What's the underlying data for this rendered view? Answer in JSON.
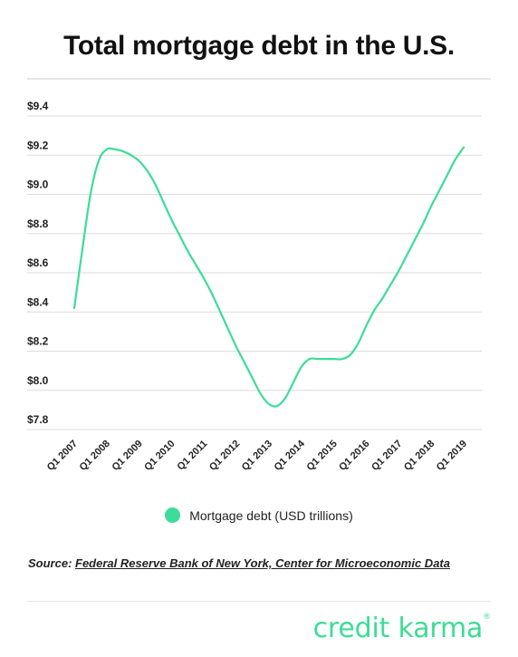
{
  "header": {
    "title": "Total mortgage debt in the U.S."
  },
  "chart_data": {
    "type": "line",
    "title": "Total mortgage debt in the U.S.",
    "xlabel": "",
    "ylabel": "",
    "categories": [
      "Q1 2007",
      "Q1 2008",
      "Q1 2009",
      "Q1 2010",
      "Q1 2011",
      "Q1 2012",
      "Q1 2013",
      "Q1 2014",
      "Q1 2015",
      "Q1 2016",
      "Q1 2017",
      "Q1 2018",
      "Q1 2019"
    ],
    "series": [
      {
        "name": "Mortgage debt (USD trillions)",
        "x": [
          2007.0,
          2007.25,
          2007.5,
          2007.75,
          2008.0,
          2008.25,
          2008.5,
          2008.75,
          2009.0,
          2009.25,
          2009.5,
          2009.75,
          2010.0,
          2010.25,
          2010.5,
          2010.75,
          2011.0,
          2011.25,
          2011.5,
          2011.75,
          2012.0,
          2012.25,
          2012.5,
          2012.75,
          2013.0,
          2013.25,
          2013.5,
          2013.75,
          2014.0,
          2014.25,
          2014.5,
          2014.75,
          2015.0,
          2015.25,
          2015.5,
          2015.75,
          2016.0,
          2016.25,
          2016.5,
          2016.75,
          2017.0,
          2017.25,
          2017.5,
          2017.75,
          2018.0,
          2018.25,
          2018.5,
          2018.75,
          2019.0
        ],
        "values": [
          8.42,
          8.72,
          9.0,
          9.17,
          9.23,
          9.23,
          9.22,
          9.2,
          9.17,
          9.12,
          9.05,
          8.96,
          8.87,
          8.79,
          8.71,
          8.64,
          8.57,
          8.49,
          8.4,
          8.31,
          8.22,
          8.14,
          8.06,
          7.98,
          7.93,
          7.92,
          7.96,
          8.04,
          8.12,
          8.16,
          8.16,
          8.16,
          8.16,
          8.16,
          8.18,
          8.24,
          8.33,
          8.41,
          8.47,
          8.54,
          8.61,
          8.69,
          8.77,
          8.85,
          8.94,
          9.02,
          9.1,
          9.18,
          9.24
        ]
      }
    ],
    "yticks": [
      "$9.4",
      "$9.2",
      "$9.0",
      "$8.8",
      "$8.6",
      "$8.4",
      "$8.2",
      "$8.0",
      "$7.8"
    ],
    "ylim": [
      7.8,
      9.4
    ],
    "xlim": [
      2007,
      2019
    ],
    "grid": true,
    "legend": "bottom-center",
    "line_color": "#3ddc97",
    "grid_color": "#dddddd"
  },
  "legend": {
    "label": "Mortgage debt (USD trillions)",
    "color": "#3ddc97"
  },
  "footer": {
    "source_prefix": "Source: ",
    "source_link": "Federal Reserve Bank of New York, Center for Microeconomic Data",
    "logo_text": "credit karma",
    "logo_mark": "®",
    "logo_color": "#3ddc97"
  }
}
